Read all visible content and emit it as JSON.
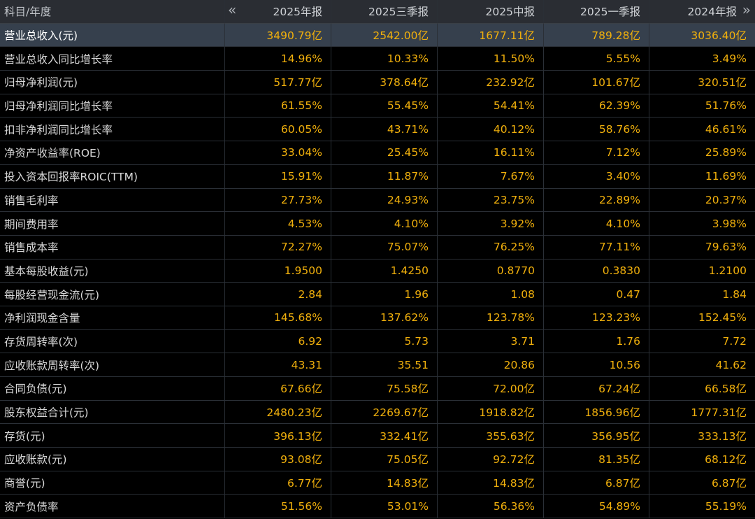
{
  "header": {
    "first_col": "科目/年度",
    "prev_icon": "«",
    "next_icon": "»",
    "periods": [
      "2025年报",
      "2025三季报",
      "2025中报",
      "2025一季报",
      "2024年报"
    ]
  },
  "rows": [
    {
      "label": "营业总收入(元)",
      "values": [
        "3490.79亿",
        "2542.00亿",
        "1677.11亿",
        "789.28亿",
        "3036.40亿"
      ]
    },
    {
      "label": "营业总收入同比增长率",
      "values": [
        "14.96%",
        "10.33%",
        "11.50%",
        "5.55%",
        "3.49%"
      ]
    },
    {
      "label": "归母净利润(元)",
      "values": [
        "517.77亿",
        "378.64亿",
        "232.92亿",
        "101.67亿",
        "320.51亿"
      ]
    },
    {
      "label": "归母净利润同比增长率",
      "values": [
        "61.55%",
        "55.45%",
        "54.41%",
        "62.39%",
        "51.76%"
      ]
    },
    {
      "label": "扣非净利润同比增长率",
      "values": [
        "60.05%",
        "43.71%",
        "40.12%",
        "58.76%",
        "46.61%"
      ]
    },
    {
      "label": "净资产收益率(ROE)",
      "values": [
        "33.04%",
        "25.45%",
        "16.11%",
        "7.12%",
        "25.89%"
      ]
    },
    {
      "label": "投入资本回报率ROIC(TTM)",
      "values": [
        "15.91%",
        "11.87%",
        "7.67%",
        "3.40%",
        "11.69%"
      ]
    },
    {
      "label": "销售毛利率",
      "values": [
        "27.73%",
        "24.93%",
        "23.75%",
        "22.89%",
        "20.37%"
      ]
    },
    {
      "label": "期间费用率",
      "values": [
        "4.53%",
        "4.10%",
        "3.92%",
        "4.10%",
        "3.98%"
      ]
    },
    {
      "label": "销售成本率",
      "values": [
        "72.27%",
        "75.07%",
        "76.25%",
        "77.11%",
        "79.63%"
      ]
    },
    {
      "label": "基本每股收益(元)",
      "values": [
        "1.9500",
        "1.4250",
        "0.8770",
        "0.3830",
        "1.2100"
      ]
    },
    {
      "label": "每股经营现金流(元)",
      "values": [
        "2.84",
        "1.96",
        "1.08",
        "0.47",
        "1.84"
      ]
    },
    {
      "label": "净利润现金含量",
      "values": [
        "145.68%",
        "137.62%",
        "123.78%",
        "123.23%",
        "152.45%"
      ]
    },
    {
      "label": "存货周转率(次)",
      "values": [
        "6.92",
        "5.73",
        "3.71",
        "1.76",
        "7.72"
      ]
    },
    {
      "label": "应收账款周转率(次)",
      "values": [
        "43.31",
        "35.51",
        "20.86",
        "10.56",
        "41.62"
      ]
    },
    {
      "label": "合同负债(元)",
      "values": [
        "67.66亿",
        "75.58亿",
        "72.00亿",
        "67.24亿",
        "66.58亿"
      ]
    },
    {
      "label": "股东权益合计(元)",
      "values": [
        "2480.23亿",
        "2269.67亿",
        "1918.82亿",
        "1856.96亿",
        "1777.31亿"
      ]
    },
    {
      "label": "存货(元)",
      "values": [
        "396.13亿",
        "332.41亿",
        "355.63亿",
        "356.95亿",
        "333.13亿"
      ]
    },
    {
      "label": "应收账款(元)",
      "values": [
        "93.08亿",
        "75.05亿",
        "92.72亿",
        "81.35亿",
        "68.12亿"
      ]
    },
    {
      "label": "商誉(元)",
      "values": [
        "6.77亿",
        "14.83亿",
        "14.83亿",
        "6.87亿",
        "6.87亿"
      ]
    },
    {
      "label": "资产负债率",
      "values": [
        "51.56%",
        "53.01%",
        "56.36%",
        "54.89%",
        "55.19%"
      ]
    }
  ],
  "colors": {
    "value_text": "#f1b00c",
    "label_text": "#d8d8d8",
    "header_bg": "#2a2d33",
    "highlight_bg": "#36404d",
    "bg": "#000000"
  }
}
